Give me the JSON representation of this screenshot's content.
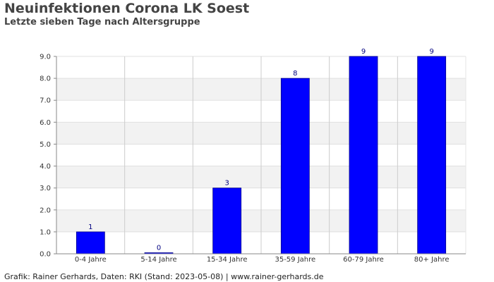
{
  "header": {
    "title": "Neuinfektionen Corona LK Soest",
    "subtitle": "Letzte sieben Tage nach Altersgruppe"
  },
  "footer": {
    "text": "Grafik: Rainer Gerhards, Daten: RKI (Stand: 2023-05-08) | www.rainer-gerhards.de"
  },
  "colors": {
    "bar": "#0000ff",
    "data_label": "#000080",
    "band": "#f2f2f2",
    "grid": "#cccccc"
  },
  "chart_data": {
    "type": "bar",
    "title": "Neuinfektionen Corona LK Soest",
    "subtitle": "Letzte sieben Tage nach Altersgruppe",
    "categories": [
      "0-4 Jahre",
      "5-14 Jahre",
      "15-34 Jahre",
      "35-59 Jahre",
      "60-79 Jahre",
      "80+ Jahre"
    ],
    "values": [
      1,
      0,
      3,
      8,
      9,
      9
    ],
    "ylim": [
      0,
      9
    ],
    "yticks": [
      "0.0",
      "1.0",
      "2.0",
      "3.0",
      "4.0",
      "5.0",
      "6.0",
      "7.0",
      "8.0",
      "9.0"
    ],
    "grid": true,
    "legend": "none"
  }
}
